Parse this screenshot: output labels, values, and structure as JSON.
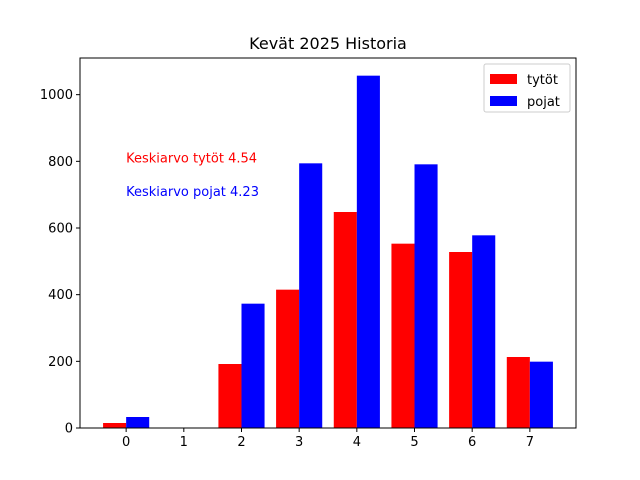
{
  "chart_data": {
    "type": "bar",
    "title": "Kevät 2025 Historia",
    "xlabel": "",
    "ylabel": "",
    "categories": [
      "0",
      "1",
      "2",
      "3",
      "4",
      "5",
      "6",
      "7"
    ],
    "x": [
      0,
      1,
      2,
      3,
      4,
      5,
      6,
      7
    ],
    "xlim": [
      -0.8,
      7.8
    ],
    "ylim": [
      0,
      1110
    ],
    "yticks": [
      0,
      200,
      400,
      600,
      800,
      1000
    ],
    "series": [
      {
        "name": "tytöt",
        "color": "#ff0000",
        "values": [
          15,
          0,
          192,
          415,
          648,
          553,
          528,
          213
        ]
      },
      {
        "name": "pojat",
        "color": "#0000ff",
        "values": [
          33,
          0,
          373,
          794,
          1057,
          791,
          578,
          199
        ]
      }
    ],
    "legend": {
      "position": "top-right"
    },
    "grid": false,
    "annotations": [
      {
        "text": "Keskiarvo tytöt 4.54",
        "color": "#ff0000",
        "x": 0,
        "y": 810
      },
      {
        "text": "Keskiarvo pojat 4.23",
        "color": "#0000ff",
        "x": 0,
        "y": 710
      }
    ]
  }
}
